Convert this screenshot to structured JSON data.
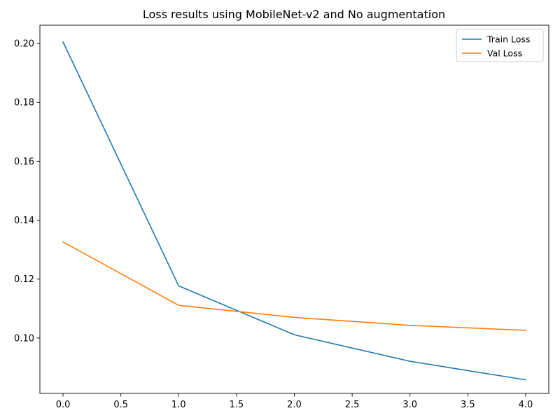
{
  "chart_data": {
    "type": "line",
    "title": "Loss results using MobileNet-v2 and No augmentation",
    "xlabel": "",
    "ylabel": "",
    "x": [
      0,
      1,
      2,
      3,
      4
    ],
    "xlim": [
      -0.2,
      4.2
    ],
    "ylim": [
      0.0812,
      0.2062
    ],
    "x_ticks": [
      0.0,
      0.5,
      1.0,
      1.5,
      2.0,
      2.5,
      3.0,
      3.5,
      4.0
    ],
    "x_tick_labels": [
      "0.0",
      "0.5",
      "1.0",
      "1.5",
      "2.0",
      "2.5",
      "3.0",
      "3.5",
      "4.0"
    ],
    "y_ticks": [
      0.1,
      0.12,
      0.14,
      0.16,
      0.18,
      0.2
    ],
    "y_tick_labels": [
      "0.10",
      "0.12",
      "0.14",
      "0.16",
      "0.18",
      "0.20"
    ],
    "grid": false,
    "legend_position": "top-right",
    "series": [
      {
        "name": "Train Loss",
        "color": "#1f77b4",
        "values": [
          0.2005,
          0.1177,
          0.1011,
          0.0921,
          0.0858
        ]
      },
      {
        "name": "Val Loss",
        "color": "#ff7f0e",
        "values": [
          0.1326,
          0.1111,
          0.107,
          0.1043,
          0.1026
        ]
      }
    ]
  }
}
